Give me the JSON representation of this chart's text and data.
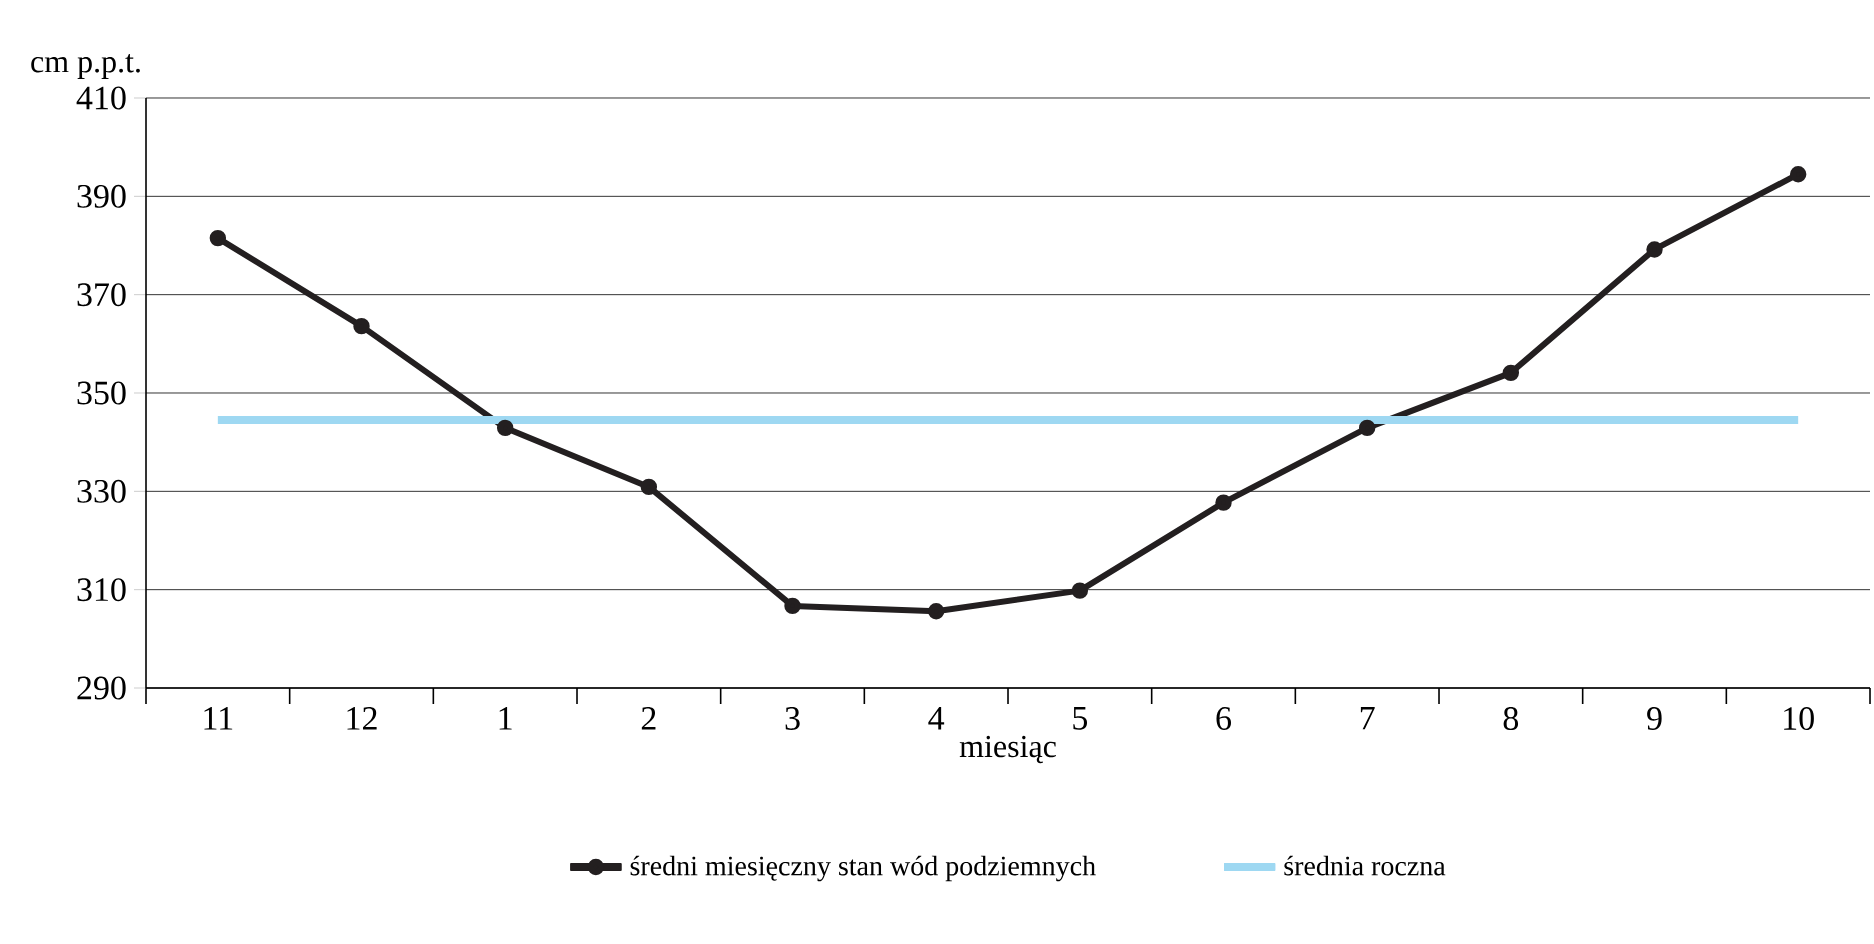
{
  "chart_data": {
    "type": "line",
    "ylabel": "cm p.p.t.",
    "xlabel": "miesiąc",
    "categories": [
      "11",
      "12",
      "1",
      "2",
      "3",
      "4",
      "5",
      "6",
      "7",
      "8",
      "9",
      "10"
    ],
    "series": [
      {
        "name": "średni miesięczny stan wód podziemnych",
        "color": "#231f20",
        "marker": "circle",
        "values": [
          381.5,
          363.6,
          342.9,
          330.9,
          306.7,
          305.6,
          309.8,
          327.7,
          342.9,
          354.1,
          379.2,
          394.5
        ]
      },
      {
        "name": "średnia roczna",
        "color": "#9ed8f2",
        "marker": "none",
        "values": [
          344.5,
          344.5,
          344.5,
          344.5,
          344.5,
          344.5,
          344.5,
          344.5,
          344.5,
          344.5,
          344.5,
          344.5
        ]
      }
    ],
    "ylim": [
      290,
      410
    ],
    "yticks": [
      290,
      310,
      330,
      350,
      370,
      390,
      410
    ],
    "grid": "y",
    "legend": "bottom"
  }
}
